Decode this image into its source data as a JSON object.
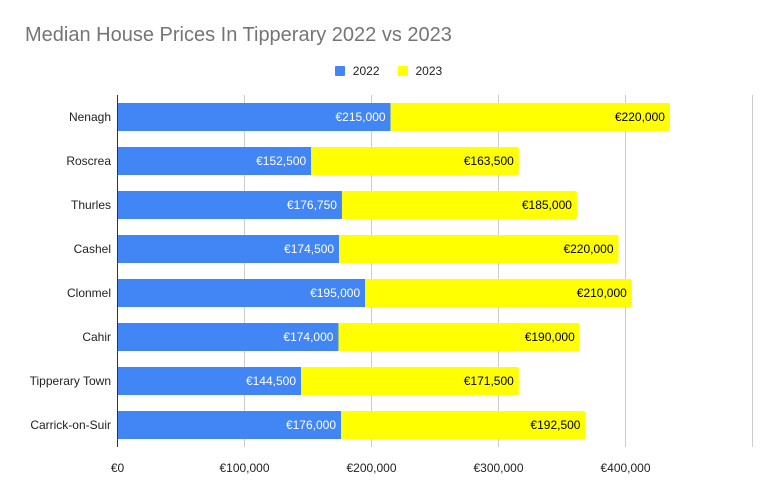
{
  "chart_data": {
    "type": "bar",
    "orientation": "horizontal",
    "stacked": true,
    "title": "Median House Prices In Tipperary 2022 vs 2023",
    "xlabel": "",
    "ylabel": "",
    "categories": [
      "Nenagh",
      "Roscrea",
      "Thurles",
      "Cashel",
      "Clonmel",
      "Cahir",
      "Tipperary Town",
      "Carrick-on-Suir"
    ],
    "series": [
      {
        "name": "2022",
        "color": "#4285f4",
        "values": [
          215000,
          152500,
          176750,
          174500,
          195000,
          174000,
          144500,
          176000
        ],
        "labels": [
          "€215,000",
          "€152,500",
          "€176,750",
          "€174,500",
          "€195,000",
          "€174,000",
          "€144,500",
          "€176,000"
        ]
      },
      {
        "name": "2023",
        "color": "#ffff00",
        "values": [
          220000,
          163500,
          185000,
          220000,
          210000,
          190000,
          171500,
          192500
        ],
        "labels": [
          "€220,000",
          "€163,500",
          "€185,000",
          "€220,000",
          "€210,000",
          "€190,000",
          "€171,500",
          "€192,500"
        ]
      }
    ],
    "xlim": [
      0,
      500000
    ],
    "xticks": [
      0,
      100000,
      200000,
      300000,
      400000
    ],
    "xtick_labels": [
      "€0",
      "€100,000",
      "€200,000",
      "€300,000",
      "€400,000"
    ],
    "grid": true,
    "legend_position": "top"
  }
}
